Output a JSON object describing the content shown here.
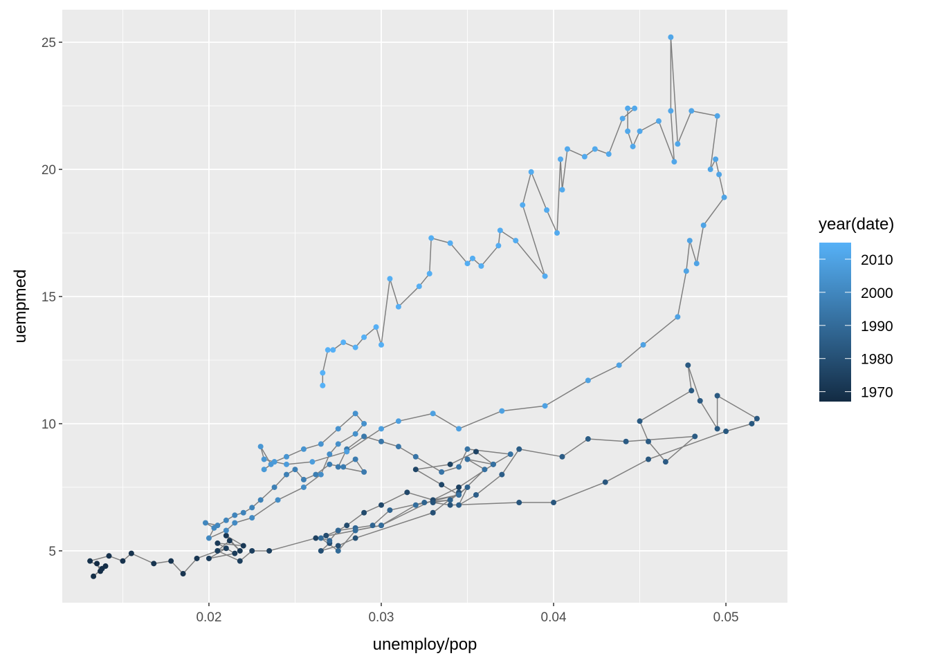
{
  "chart_data": {
    "type": "line",
    "subtype": "path with points",
    "xlabel": "unemploy/pop",
    "ylabel": "uempmed",
    "xlim": [
      0.01149,
      0.05357
    ],
    "ylim": [
      2.96,
      26.28
    ],
    "x_ticks": [
      "0.02",
      "0.03",
      "0.04",
      "0.05"
    ],
    "y_ticks": [
      "5",
      "10",
      "15",
      "20",
      "25"
    ],
    "grid": true,
    "path_color": "#7F7F7F",
    "panel_background": "#EBEBEB",
    "legend": {
      "title": "year(date)",
      "position": "right",
      "labels": [
        "2010",
        "2000",
        "1990",
        "1980",
        "1970"
      ],
      "range": [
        1967,
        2015
      ],
      "low_color": "#132B43",
      "high_color": "#56B1F7"
    },
    "fields": [
      "year",
      "unemploy_pop",
      "uempmed"
    ],
    "points": [
      [
        1967.5,
        0.0135,
        4.5
      ],
      [
        1967.7,
        0.0137,
        4.2
      ],
      [
        1968.0,
        0.014,
        4.4
      ],
      [
        1968.3,
        0.0133,
        4.0
      ],
      [
        1968.6,
        0.0138,
        4.3
      ],
      [
        1969.0,
        0.0131,
        4.6
      ],
      [
        1969.3,
        0.0142,
        4.8
      ],
      [
        1969.6,
        0.015,
        4.6
      ],
      [
        1969.9,
        0.0155,
        4.9
      ],
      [
        1970.1,
        0.0168,
        4.5
      ],
      [
        1970.3,
        0.0178,
        4.6
      ],
      [
        1970.5,
        0.0185,
        4.1
      ],
      [
        1970.7,
        0.0193,
        4.7
      ],
      [
        1970.9,
        0.0205,
        5.0
      ],
      [
        1971.2,
        0.0212,
        5.4
      ],
      [
        1971.5,
        0.0218,
        5.0
      ],
      [
        1971.8,
        0.021,
        5.6
      ],
      [
        1972.1,
        0.022,
        5.2
      ],
      [
        1972.4,
        0.0205,
        5.3
      ],
      [
        1972.8,
        0.0215,
        4.9
      ],
      [
        1973.1,
        0.02,
        4.7
      ],
      [
        1973.4,
        0.021,
        5.1
      ],
      [
        1973.7,
        0.0205,
        5.0
      ],
      [
        1974.0,
        0.0218,
        4.6
      ],
      [
        1974.3,
        0.0225,
        5.0
      ],
      [
        1974.6,
        0.0235,
        5.0
      ],
      [
        1974.9,
        0.0262,
        5.5
      ],
      [
        1975.1,
        0.03,
        6.0
      ],
      [
        1975.3,
        0.0345,
        7.5
      ],
      [
        1975.5,
        0.0365,
        8.4
      ],
      [
        1975.7,
        0.0355,
        8.9
      ],
      [
        1975.9,
        0.034,
        8.4
      ],
      [
        1976.2,
        0.032,
        8.2
      ],
      [
        1976.5,
        0.0335,
        7.6
      ],
      [
        1976.8,
        0.0345,
        7.2
      ],
      [
        1977.1,
        0.033,
        7.0
      ],
      [
        1977.4,
        0.0315,
        7.3
      ],
      [
        1977.7,
        0.03,
        6.8
      ],
      [
        1978.0,
        0.029,
        6.5
      ],
      [
        1978.3,
        0.028,
        6.0
      ],
      [
        1978.6,
        0.0275,
        5.8
      ],
      [
        1978.9,
        0.0268,
        5.6
      ],
      [
        1979.2,
        0.027,
        5.3
      ],
      [
        1979.5,
        0.0265,
        5.0
      ],
      [
        1979.8,
        0.0275,
        5.2
      ],
      [
        1980.1,
        0.0285,
        5.5
      ],
      [
        1980.4,
        0.033,
        6.5
      ],
      [
        1980.7,
        0.0345,
        7.3
      ],
      [
        1981.0,
        0.034,
        7.0
      ],
      [
        1981.3,
        0.033,
        6.9
      ],
      [
        1981.6,
        0.034,
        6.8
      ],
      [
        1981.9,
        0.038,
        6.9
      ],
      [
        1982.2,
        0.04,
        6.9
      ],
      [
        1982.5,
        0.043,
        7.7
      ],
      [
        1982.8,
        0.0455,
        8.6
      ],
      [
        1983.0,
        0.05,
        9.7
      ],
      [
        1983.1,
        0.0515,
        10.0
      ],
      [
        1983.2,
        0.0518,
        10.2
      ],
      [
        1983.3,
        0.0495,
        11.1
      ],
      [
        1983.4,
        0.0495,
        9.8
      ],
      [
        1983.5,
        0.0485,
        10.9
      ],
      [
        1983.6,
        0.0478,
        12.3
      ],
      [
        1983.7,
        0.048,
        11.3
      ],
      [
        1983.8,
        0.045,
        10.1
      ],
      [
        1983.9,
        0.0455,
        9.3
      ],
      [
        1984.0,
        0.0465,
        8.5
      ],
      [
        1984.1,
        0.0482,
        9.5
      ],
      [
        1984.2,
        0.0442,
        9.3
      ],
      [
        1984.4,
        0.042,
        9.4
      ],
      [
        1984.6,
        0.0405,
        8.7
      ],
      [
        1984.8,
        0.038,
        9.0
      ],
      [
        1985.0,
        0.037,
        8.0
      ],
      [
        1985.4,
        0.0355,
        7.2
      ],
      [
        1985.8,
        0.0345,
        6.8
      ],
      [
        1986.2,
        0.035,
        7.5
      ],
      [
        1986.6,
        0.034,
        7.0
      ],
      [
        1987.0,
        0.0325,
        6.9
      ],
      [
        1987.4,
        0.0305,
        6.6
      ],
      [
        1987.8,
        0.0295,
        6.0
      ],
      [
        1988.2,
        0.0285,
        5.9
      ],
      [
        1988.6,
        0.0275,
        5.8
      ],
      [
        1989.0,
        0.027,
        5.4
      ],
      [
        1989.4,
        0.0265,
        5.5
      ],
      [
        1989.8,
        0.0275,
        5.0
      ],
      [
        1990.2,
        0.0285,
        5.8
      ],
      [
        1990.6,
        0.03,
        6.0
      ],
      [
        1990.9,
        0.032,
        6.8
      ],
      [
        1991.2,
        0.0345,
        7.2
      ],
      [
        1991.5,
        0.036,
        8.2
      ],
      [
        1991.8,
        0.035,
        8.6
      ],
      [
        1992.1,
        0.0365,
        8.4
      ],
      [
        1992.4,
        0.0375,
        8.8
      ],
      [
        1992.7,
        0.035,
        9.0
      ],
      [
        1993.0,
        0.0345,
        8.3
      ],
      [
        1993.3,
        0.0335,
        8.1
      ],
      [
        1993.6,
        0.032,
        8.7
      ],
      [
        1993.9,
        0.031,
        9.1
      ],
      [
        1994.2,
        0.03,
        9.3
      ],
      [
        1994.5,
        0.029,
        9.5
      ],
      [
        1994.8,
        0.028,
        9.0
      ],
      [
        1995.1,
        0.0275,
        8.3
      ],
      [
        1995.4,
        0.029,
        8.1
      ],
      [
        1995.7,
        0.0285,
        8.6
      ],
      [
        1996.0,
        0.0278,
        8.3
      ],
      [
        1996.3,
        0.027,
        8.4
      ],
      [
        1996.6,
        0.0262,
        8.0
      ],
      [
        1996.9,
        0.0255,
        7.8
      ],
      [
        1997.2,
        0.025,
        8.2
      ],
      [
        1997.5,
        0.0245,
        8.0
      ],
      [
        1997.8,
        0.0238,
        7.5
      ],
      [
        1998.1,
        0.023,
        7.0
      ],
      [
        1998.4,
        0.0225,
        6.7
      ],
      [
        1998.7,
        0.022,
        6.5
      ],
      [
        1999.0,
        0.0215,
        6.4
      ],
      [
        1999.3,
        0.021,
        6.2
      ],
      [
        1999.6,
        0.0205,
        6.0
      ],
      [
        1999.9,
        0.0198,
        6.1
      ],
      [
        2000.2,
        0.0203,
        5.9
      ],
      [
        2000.5,
        0.02,
        5.5
      ],
      [
        2000.8,
        0.021,
        5.8
      ],
      [
        2001.1,
        0.0215,
        6.1
      ],
      [
        2001.4,
        0.0225,
        6.3
      ],
      [
        2001.7,
        0.024,
        7.0
      ],
      [
        2001.9,
        0.0255,
        7.5
      ],
      [
        2002.2,
        0.0265,
        8.0
      ],
      [
        2002.5,
        0.027,
        8.8
      ],
      [
        2002.8,
        0.0275,
        9.2
      ],
      [
        2003.1,
        0.0285,
        9.6
      ],
      [
        2003.4,
        0.029,
        10.0
      ],
      [
        2003.7,
        0.0285,
        10.4
      ],
      [
        2004.0,
        0.0275,
        9.8
      ],
      [
        2004.3,
        0.0265,
        9.2
      ],
      [
        2004.6,
        0.0255,
        9.0
      ],
      [
        2004.9,
        0.0245,
        8.7
      ],
      [
        2005.2,
        0.0238,
        8.5
      ],
      [
        2005.5,
        0.0232,
        8.6
      ],
      [
        2005.8,
        0.023,
        9.1
      ],
      [
        2006.2,
        0.0236,
        8.4
      ],
      [
        2006.6,
        0.0232,
        8.2
      ],
      [
        2007.0,
        0.0238,
        8.5
      ],
      [
        2007.5,
        0.0245,
        8.4
      ],
      [
        2007.9,
        0.026,
        8.5
      ],
      [
        2008.2,
        0.028,
        8.9
      ],
      [
        2008.4,
        0.03,
        9.8
      ],
      [
        2008.6,
        0.031,
        10.1
      ],
      [
        2008.8,
        0.033,
        10.4
      ],
      [
        2009.0,
        0.0345,
        9.8
      ],
      [
        2009.2,
        0.037,
        10.5
      ],
      [
        2009.35,
        0.0395,
        10.7
      ],
      [
        2009.5,
        0.042,
        11.7
      ],
      [
        2009.6,
        0.0438,
        12.3
      ],
      [
        2009.7,
        0.0452,
        13.1
      ],
      [
        2009.8,
        0.0472,
        14.2
      ],
      [
        2009.9,
        0.0477,
        16.0
      ],
      [
        2010.0,
        0.0479,
        17.2
      ],
      [
        2010.1,
        0.0483,
        16.3
      ],
      [
        2010.2,
        0.0487,
        17.8
      ],
      [
        2010.3,
        0.0499,
        18.9
      ],
      [
        2010.4,
        0.0496,
        19.8
      ],
      [
        2010.5,
        0.0494,
        20.4
      ],
      [
        2010.6,
        0.0491,
        20.0
      ],
      [
        2010.7,
        0.0495,
        22.1
      ],
      [
        2010.8,
        0.048,
        22.3
      ],
      [
        2010.9,
        0.0472,
        21.0
      ],
      [
        2011.0,
        0.0468,
        25.2
      ],
      [
        2011.1,
        0.0468,
        22.3
      ],
      [
        2011.2,
        0.047,
        20.3
      ],
      [
        2011.3,
        0.0461,
        21.9
      ],
      [
        2011.4,
        0.045,
        21.5
      ],
      [
        2011.5,
        0.0446,
        20.9
      ],
      [
        2011.6,
        0.0443,
        21.5
      ],
      [
        2011.7,
        0.0443,
        22.4
      ],
      [
        2011.8,
        0.0447,
        22.4
      ],
      [
        2011.9,
        0.044,
        22.0
      ],
      [
        2012.0,
        0.0432,
        20.6
      ],
      [
        2012.1,
        0.0424,
        20.8
      ],
      [
        2012.2,
        0.0418,
        20.5
      ],
      [
        2012.3,
        0.0408,
        20.8
      ],
      [
        2012.4,
        0.0405,
        19.2
      ],
      [
        2012.5,
        0.0404,
        20.4
      ],
      [
        2012.6,
        0.0402,
        17.5
      ],
      [
        2012.7,
        0.0396,
        18.4
      ],
      [
        2012.8,
        0.0387,
        19.9
      ],
      [
        2012.9,
        0.0382,
        18.6
      ],
      [
        2013.0,
        0.0395,
        15.8
      ],
      [
        2013.1,
        0.0378,
        17.2
      ],
      [
        2013.2,
        0.0369,
        17.6
      ],
      [
        2013.3,
        0.0368,
        17.0
      ],
      [
        2013.4,
        0.0358,
        16.2
      ],
      [
        2013.5,
        0.0353,
        16.5
      ],
      [
        2013.6,
        0.035,
        16.3
      ],
      [
        2013.7,
        0.034,
        17.1
      ],
      [
        2013.8,
        0.0329,
        17.3
      ],
      [
        2013.9,
        0.0328,
        15.9
      ],
      [
        2014.0,
        0.0322,
        15.4
      ],
      [
        2014.1,
        0.031,
        14.6
      ],
      [
        2014.2,
        0.0305,
        15.7
      ],
      [
        2014.3,
        0.03,
        13.1
      ],
      [
        2014.4,
        0.0297,
        13.8
      ],
      [
        2014.5,
        0.029,
        13.4
      ],
      [
        2014.6,
        0.0285,
        13.0
      ],
      [
        2014.7,
        0.0278,
        13.2
      ],
      [
        2014.8,
        0.0272,
        12.9
      ],
      [
        2014.9,
        0.0269,
        12.9
      ],
      [
        2015.0,
        0.0266,
        12.0
      ],
      [
        2015.2,
        0.0266,
        11.5
      ]
    ]
  }
}
